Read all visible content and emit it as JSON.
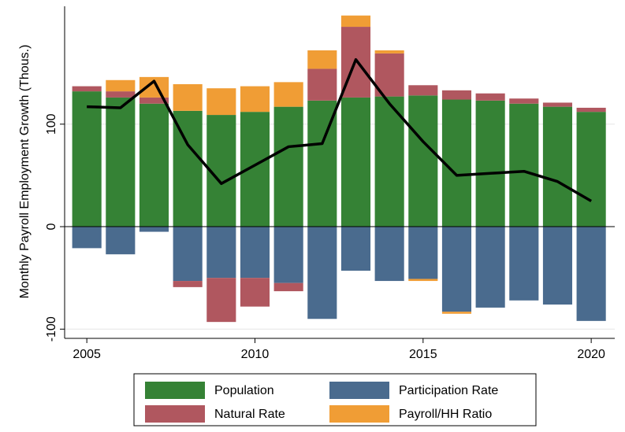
{
  "chart_data": {
    "type": "stacked-bar-line",
    "y_label": "Monthly Payroll Employment Growth (Thous.)",
    "x": [
      2005,
      2006,
      2007,
      2008,
      2009,
      2010,
      2011,
      2012,
      2013,
      2014,
      2015,
      2016,
      2017,
      2018,
      2019,
      2020
    ],
    "series": [
      {
        "name": "Population",
        "color": "#358235",
        "values": [
          132,
          126,
          120,
          113,
          109,
          112,
          117,
          123,
          126,
          127,
          128,
          124,
          123,
          120,
          117,
          112
        ]
      },
      {
        "name": "Participation Rate",
        "color": "#4a6b8e",
        "values": [
          -21,
          -27,
          -5,
          -53,
          -50,
          -50,
          -55,
          -90,
          -43,
          -53,
          -51,
          -83,
          -79,
          -72,
          -76,
          -92
        ]
      },
      {
        "name": "Natural Rate",
        "color": "#b0575f",
        "values": [
          5,
          6,
          6,
          -6,
          -43,
          -28,
          -8,
          31,
          69,
          42,
          10,
          9,
          7,
          5,
          4,
          4
        ]
      },
      {
        "name": "Payroll/HH Ratio",
        "color": "#f09d35",
        "values": [
          null,
          11,
          20,
          26,
          26,
          25,
          24,
          18,
          11,
          3,
          -2,
          -2,
          null,
          null,
          null,
          null
        ]
      }
    ],
    "line": {
      "color": "#000000",
      "values": [
        117,
        116,
        142,
        80,
        42,
        60,
        78,
        81,
        163,
        120,
        83,
        50,
        52,
        54,
        44,
        25
      ]
    },
    "xlim": [
      2004.34,
      2020.7
    ],
    "xticks": [
      2005,
      2010,
      2015,
      2020
    ],
    "ylim": [
      -109,
      215
    ],
    "yticks": [
      -100,
      0,
      100
    ],
    "grid": true
  }
}
